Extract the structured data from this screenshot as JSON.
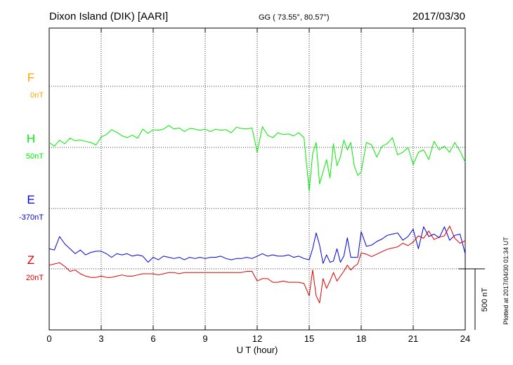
{
  "chart_data": {
    "type": "line",
    "title": "Dixon Island (DIK)  [AARI]",
    "coords": "GG ( 73.55°,  80.57°)",
    "date": "2017/03/30",
    "xlabel": "U T (hour)",
    "xlim": [
      0,
      24
    ],
    "xticks": [
      "0",
      "3",
      "6",
      "9",
      "12",
      "15",
      "18",
      "21",
      "24"
    ],
    "grid": true,
    "scale_bar_label": "500 nT",
    "plotted_label": "Plotted at 2017/04/30 01:34 UT",
    "series": [
      {
        "name": "F",
        "baseline_label": "0nT",
        "color": "#ffa500",
        "x": [],
        "y": []
      },
      {
        "name": "H",
        "baseline_label": "50nT",
        "color": "#00ee00",
        "x": [
          0,
          0.3,
          0.6,
          0.9,
          1.2,
          1.5,
          1.8,
          2.1,
          2.4,
          2.7,
          3.0,
          3.3,
          3.6,
          3.9,
          4.2,
          4.5,
          4.8,
          5.1,
          5.4,
          5.7,
          6.0,
          6.3,
          6.6,
          6.9,
          7.2,
          7.5,
          7.8,
          8.1,
          8.4,
          8.7,
          9.0,
          9.3,
          9.6,
          9.9,
          10.2,
          10.5,
          10.8,
          11.1,
          11.4,
          11.7,
          12.0,
          12.3,
          12.6,
          12.9,
          13.2,
          13.5,
          13.8,
          14.1,
          14.4,
          14.7,
          15.0,
          15.2,
          15.4,
          15.6,
          15.8,
          16.0,
          16.2,
          16.4,
          16.6,
          16.8,
          17.0,
          17.2,
          17.4,
          17.6,
          17.8,
          18.0,
          18.3,
          18.6,
          18.9,
          19.2,
          19.5,
          19.8,
          20.1,
          20.4,
          20.7,
          21.0,
          21.3,
          21.6,
          21.9,
          22.2,
          22.5,
          22.8,
          23.1,
          23.4,
          23.7,
          24.0
        ],
        "y": [
          40,
          10,
          60,
          30,
          75,
          55,
          60,
          50,
          40,
          20,
          85,
          105,
          145,
          125,
          95,
          80,
          100,
          75,
          150,
          115,
          145,
          140,
          150,
          180,
          150,
          160,
          130,
          155,
          150,
          140,
          150,
          130,
          150,
          140,
          145,
          120,
          165,
          155,
          150,
          160,
          -40,
          170,
          100,
          80,
          120,
          105,
          110,
          95,
          120,
          80,
          -360,
          -50,
          40,
          -300,
          -200,
          -100,
          -250,
          30,
          -150,
          -80,
          60,
          -20,
          40,
          -150,
          -230,
          -200,
          40,
          20,
          -80,
          10,
          30,
          80,
          -60,
          -40,
          0,
          -140,
          -40,
          -20,
          -100,
          50,
          -20,
          10,
          -40,
          40,
          -30,
          -120
        ]
      },
      {
        "name": "E",
        "baseline_label": "-370nT",
        "color": "#0000dd",
        "x": [
          0,
          0.3,
          0.6,
          0.9,
          1.2,
          1.5,
          1.8,
          2.1,
          2.4,
          2.7,
          3.0,
          3.3,
          3.6,
          3.9,
          4.2,
          4.5,
          4.8,
          5.1,
          5.4,
          5.7,
          6.0,
          6.3,
          6.6,
          6.9,
          7.2,
          7.5,
          7.8,
          8.1,
          8.4,
          8.7,
          9.0,
          9.3,
          9.6,
          9.9,
          10.2,
          10.5,
          10.8,
          11.1,
          11.4,
          11.7,
          12.0,
          12.3,
          12.6,
          12.9,
          13.2,
          13.5,
          13.8,
          14.1,
          14.4,
          14.7,
          15.0,
          15.2,
          15.4,
          15.6,
          15.8,
          16.0,
          16.2,
          16.4,
          16.6,
          16.8,
          17.0,
          17.2,
          17.4,
          17.6,
          17.8,
          18.0,
          18.3,
          18.6,
          18.9,
          19.2,
          19.5,
          19.8,
          20.1,
          20.4,
          20.7,
          21.0,
          21.3,
          21.6,
          21.9,
          22.2,
          22.5,
          22.8,
          23.1,
          23.4,
          23.7,
          24.0
        ],
        "y": [
          -330,
          -340,
          -230,
          -290,
          -330,
          -370,
          -340,
          -380,
          -360,
          -350,
          -350,
          -370,
          -400,
          -370,
          -380,
          -370,
          -390,
          -380,
          -390,
          -440,
          -400,
          -420,
          -390,
          -400,
          -410,
          -400,
          -420,
          -400,
          -410,
          -400,
          -410,
          -400,
          -400,
          -390,
          -410,
          -420,
          -410,
          -410,
          -400,
          -410,
          -390,
          -370,
          -390,
          -380,
          -390,
          -390,
          -380,
          -400,
          -390,
          -410,
          -420,
          -330,
          -200,
          -300,
          -450,
          -380,
          -440,
          -430,
          -330,
          -440,
          -390,
          -240,
          -400,
          -400,
          -400,
          -190,
          -310,
          -300,
          -270,
          -250,
          -220,
          -210,
          -200,
          -260,
          -230,
          -170,
          -330,
          -150,
          -230,
          -210,
          -240,
          -150,
          -260,
          -220,
          -210,
          -370
        ]
      },
      {
        "name": "Z",
        "baseline_label": "20nT",
        "color": "#dd0000",
        "x": [
          0,
          0.3,
          0.6,
          0.9,
          1.2,
          1.5,
          1.8,
          2.1,
          2.4,
          2.7,
          3.0,
          3.3,
          3.6,
          3.9,
          4.2,
          4.5,
          4.8,
          5.1,
          5.4,
          5.7,
          6.0,
          6.3,
          6.6,
          6.9,
          7.2,
          7.5,
          7.8,
          8.1,
          8.4,
          8.7,
          9.0,
          9.3,
          9.6,
          9.9,
          10.2,
          10.5,
          10.8,
          11.1,
          11.4,
          11.7,
          12.0,
          12.3,
          12.6,
          12.9,
          13.2,
          13.5,
          13.8,
          14.1,
          14.4,
          14.7,
          15.0,
          15.2,
          15.4,
          15.6,
          15.8,
          16.0,
          16.2,
          16.4,
          16.6,
          16.8,
          17.0,
          17.2,
          17.4,
          17.6,
          17.8,
          18.0,
          18.3,
          18.6,
          18.9,
          19.2,
          19.5,
          19.8,
          20.1,
          20.4,
          20.7,
          21.0,
          21.3,
          21.6,
          21.9,
          22.2,
          22.5,
          22.8,
          23.1,
          23.4,
          23.7,
          24.0
        ],
        "y": [
          30,
          40,
          50,
          20,
          -20,
          -10,
          -40,
          -60,
          -70,
          -70,
          -60,
          -70,
          -70,
          -60,
          -50,
          -60,
          -60,
          -50,
          -40,
          -40,
          -40,
          -50,
          -40,
          -30,
          -30,
          -40,
          -30,
          -30,
          -30,
          -30,
          -30,
          -30,
          -30,
          -30,
          -30,
          -30,
          -30,
          -30,
          -20,
          -20,
          -100,
          -80,
          -80,
          -110,
          -110,
          -100,
          -110,
          -110,
          -110,
          -120,
          -220,
          -10,
          -220,
          -280,
          -80,
          -160,
          -100,
          -30,
          -100,
          -60,
          -20,
          30,
          -10,
          20,
          40,
          130,
          120,
          100,
          120,
          140,
          160,
          170,
          180,
          210,
          190,
          220,
          270,
          250,
          310,
          240,
          260,
          270,
          350,
          250,
          210,
          230
        ]
      }
    ]
  }
}
